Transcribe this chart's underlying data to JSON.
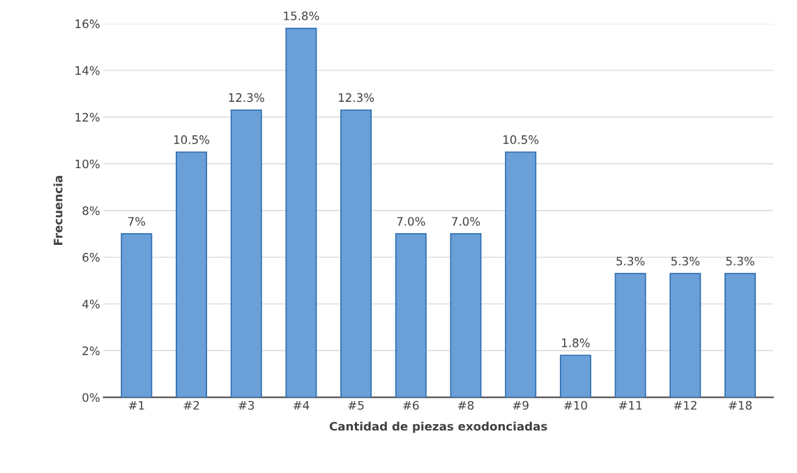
{
  "chart_data": {
    "type": "bar",
    "xlabel": "Cantidad de piezas exodonciadas",
    "ylabel": "Frecuencia",
    "categories": [
      "#1",
      "#2",
      "#3",
      "#4",
      "#5",
      "#6",
      "#8",
      "#9",
      "#10",
      "#11",
      "#12",
      "#18"
    ],
    "values": [
      7,
      10.5,
      12.3,
      15.8,
      12.3,
      7.0,
      7.0,
      10.5,
      1.8,
      5.3,
      5.3,
      5.3
    ],
    "value_labels": [
      "7%",
      "10.5%",
      "12.3%",
      "15.8%",
      "12.3%",
      "7.0%",
      "7.0%",
      "10.5%",
      "1.8%",
      "5.3%",
      "5.3%",
      "5.3%"
    ],
    "color": "#6a9fd8",
    "ylim": [
      0,
      16
    ],
    "yticks": [
      {
        "value": 0,
        "label": "0%"
      },
      {
        "value": 2,
        "label": "2%"
      },
      {
        "value": 4,
        "label": "4%"
      },
      {
        "value": 6,
        "label": "6%"
      },
      {
        "value": 8,
        "label": "8%"
      },
      {
        "value": 10,
        "label": "10%"
      },
      {
        "value": 12,
        "label": "12%"
      },
      {
        "value": 14,
        "label": "14%"
      },
      {
        "value": 16,
        "label": "16%"
      }
    ],
    "grid": "y",
    "legend": false
  }
}
